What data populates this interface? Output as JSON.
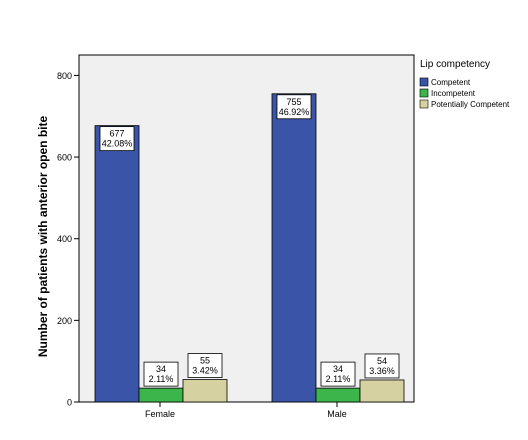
{
  "chart_data": {
    "type": "bar",
    "ylabel": "Number of patients with anterior open bite",
    "xlabel": "",
    "ylim": [
      0,
      850
    ],
    "yticks": [
      0,
      200,
      400,
      600,
      800
    ],
    "grid": false,
    "legend_placement": "right",
    "legend_title": "Lip competency",
    "categories": [
      "Female",
      "Male"
    ],
    "series": [
      {
        "name": "Competent",
        "color": "#3a54a8",
        "values": [
          677,
          755
        ],
        "labels": [
          "42.08%",
          "46.92%"
        ]
      },
      {
        "name": "Incompetent",
        "color": "#3cb54a",
        "values": [
          34,
          34
        ],
        "labels": [
          "2.11%",
          "2.11%"
        ]
      },
      {
        "name": "Potentially Competent",
        "color": "#d6d1a0",
        "values": [
          55,
          54
        ],
        "labels": [
          "3.42%",
          "3.36%"
        ]
      }
    ]
  }
}
